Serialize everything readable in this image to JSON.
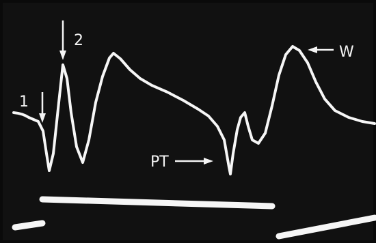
{
  "labels": {
    "marker_1": "1",
    "marker_2": "2",
    "pt": "PT",
    "w": "W"
  }
}
